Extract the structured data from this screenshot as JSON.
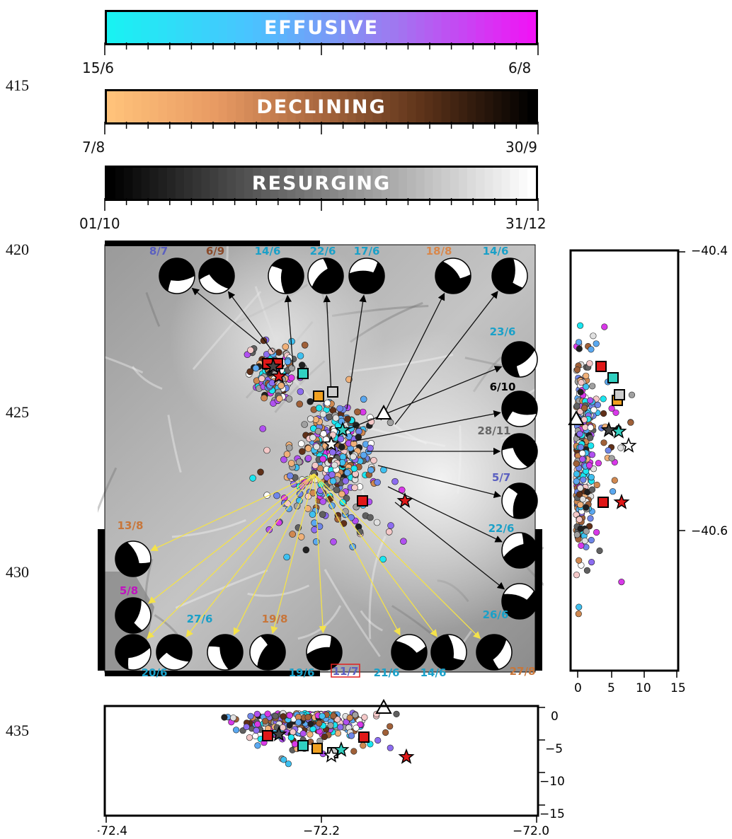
{
  "line_numbers": [
    "415",
    "420",
    "425",
    "430",
    "435"
  ],
  "colorbars": {
    "effusive": {
      "title": "EFFUSIVE",
      "start": "15/6",
      "end": "6/8",
      "colors": [
        "#19f2f2",
        "#4ac3ff",
        "#9d7af0",
        "#f014f5"
      ]
    },
    "declining": {
      "title": "DECLINING",
      "start": "7/8",
      "end": "30/9",
      "colors": [
        "#ffc27a",
        "#e89a63",
        "#a8673e",
        "#5a3118",
        "#000000"
      ]
    },
    "resurging": {
      "title": "RESURGING",
      "start": "01/10",
      "end": "31/12",
      "colors": [
        "#000000",
        "#555555",
        "#aaaaaa",
        "#ffffff"
      ]
    }
  },
  "right_panel": {
    "y_ticks": [
      "−40.4",
      "−40.6"
    ],
    "x_ticks": [
      "0",
      "5",
      "10",
      "15"
    ]
  },
  "bottom_panel": {
    "y_ticks": [
      "0",
      "−5",
      "−10",
      "−15"
    ],
    "x_ticks": [
      "−72.4",
      "−72.2",
      "−72.0"
    ]
  },
  "focal_mechanisms": [
    {
      "date": "8/7",
      "color": "#5a5fc0"
    },
    {
      "date": "6/9",
      "color": "#8a4a2a"
    },
    {
      "date": "14/6",
      "color": "#1aa0c8"
    },
    {
      "date": "22/6",
      "color": "#1aa0c8"
    },
    {
      "date": "17/6",
      "color": "#1aa0c8"
    },
    {
      "date": "18/8",
      "color": "#d9874a"
    },
    {
      "date": "14/6",
      "color": "#1aa0c8"
    },
    {
      "date": "23/6",
      "color": "#1aa0c8"
    },
    {
      "date": "6/10",
      "color": "#000000"
    },
    {
      "date": "28/11",
      "color": "#666666"
    },
    {
      "date": "5/7",
      "color": "#5a5fc0"
    },
    {
      "date": "22/6",
      "color": "#1aa0c8"
    },
    {
      "date": "26/6",
      "color": "#1aa0c8"
    },
    {
      "date": "13/8",
      "color": "#c8763a"
    },
    {
      "date": "5/8",
      "color": "#c012c0"
    },
    {
      "date": "20/6",
      "color": "#1aa0c8"
    },
    {
      "date": "27/6",
      "color": "#1aa0c8"
    },
    {
      "date": "19/8",
      "color": "#c8763a"
    },
    {
      "date": "19/6",
      "color": "#1aa0c8"
    },
    {
      "date": "11/7",
      "color": "#5a5fc0"
    },
    {
      "date": "21/6",
      "color": "#1aa0c8"
    },
    {
      "date": "14/6",
      "color": "#1aa0c8"
    },
    {
      "date": "27/8",
      "color": "#c8763a"
    }
  ]
}
